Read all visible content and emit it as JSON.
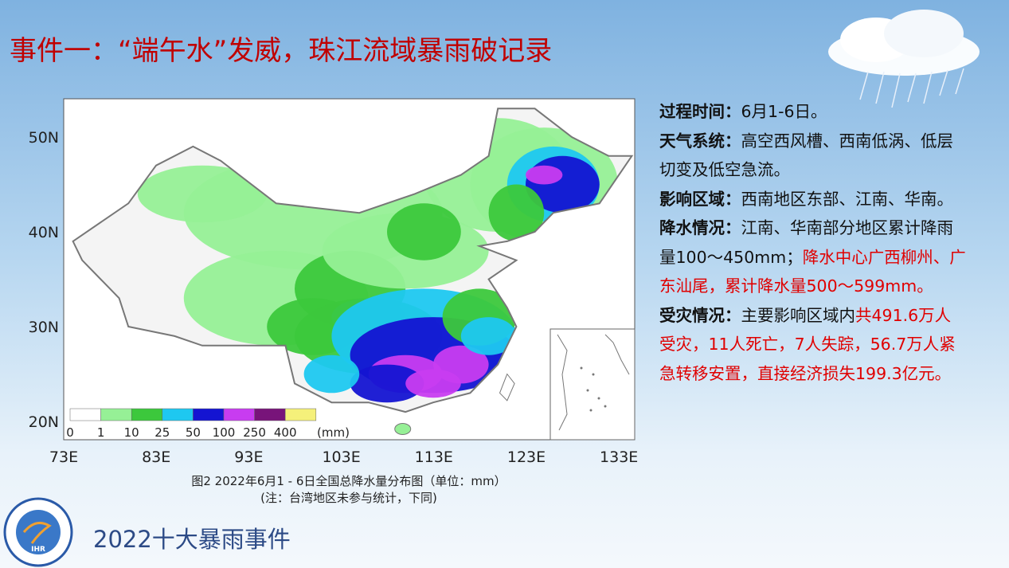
{
  "header": {
    "title": "事件一：“端午水”发威，珠江流域暴雨破记录"
  },
  "map": {
    "y_labels": [
      "50N",
      "40N",
      "30N",
      "20N"
    ],
    "x_labels": [
      "73E",
      "83E",
      "93E",
      "103E",
      "113E",
      "123E",
      "133E"
    ],
    "legend": {
      "labels": [
        "0",
        "1",
        "10",
        "25",
        "50",
        "100",
        "250",
        "400"
      ],
      "colors": [
        "#ffffff",
        "#96f096",
        "#3cc83c",
        "#1ec8f0",
        "#1414d2",
        "#c83cf0",
        "#78147a",
        "#f5f07a"
      ],
      "unit": "(mm)"
    },
    "caption": [
      "图2  2022年6月1 - 6日全国总降水量分布图（单位：mm）",
      "(注：台湾地区未参与统计，下同)"
    ]
  },
  "details": [
    {
      "label": "过程时间：",
      "segments": [
        {
          "text": "6月1-6日。",
          "highlight": false
        }
      ]
    },
    {
      "label": "天气系统：",
      "segments": [
        {
          "text": "高空西风槽、西南低涡、低层切变及低空急流。",
          "highlight": false
        }
      ]
    },
    {
      "label": "影响区域：",
      "segments": [
        {
          "text": "西南地区东部、江南、华南。",
          "highlight": false
        }
      ]
    },
    {
      "label": "降水情况：",
      "segments": [
        {
          "text": "江南、华南部分地区累计降雨量100～450mm；",
          "highlight": false
        },
        {
          "text": "降水中心广西柳州、广东汕尾，累计降水量500～599mm。",
          "highlight": true
        }
      ]
    },
    {
      "label": "受灾情况：",
      "segments": [
        {
          "text": "主要影响区域内",
          "highlight": false
        },
        {
          "text": "共491.6万人受灾，11人死亡，7人失踪，56.7万人紧急转移安置，直接经济损失199.3亿元。",
          "highlight": true
        }
      ]
    }
  ],
  "footer": {
    "logo": "IHR",
    "text": "2022十大暴雨事件"
  }
}
